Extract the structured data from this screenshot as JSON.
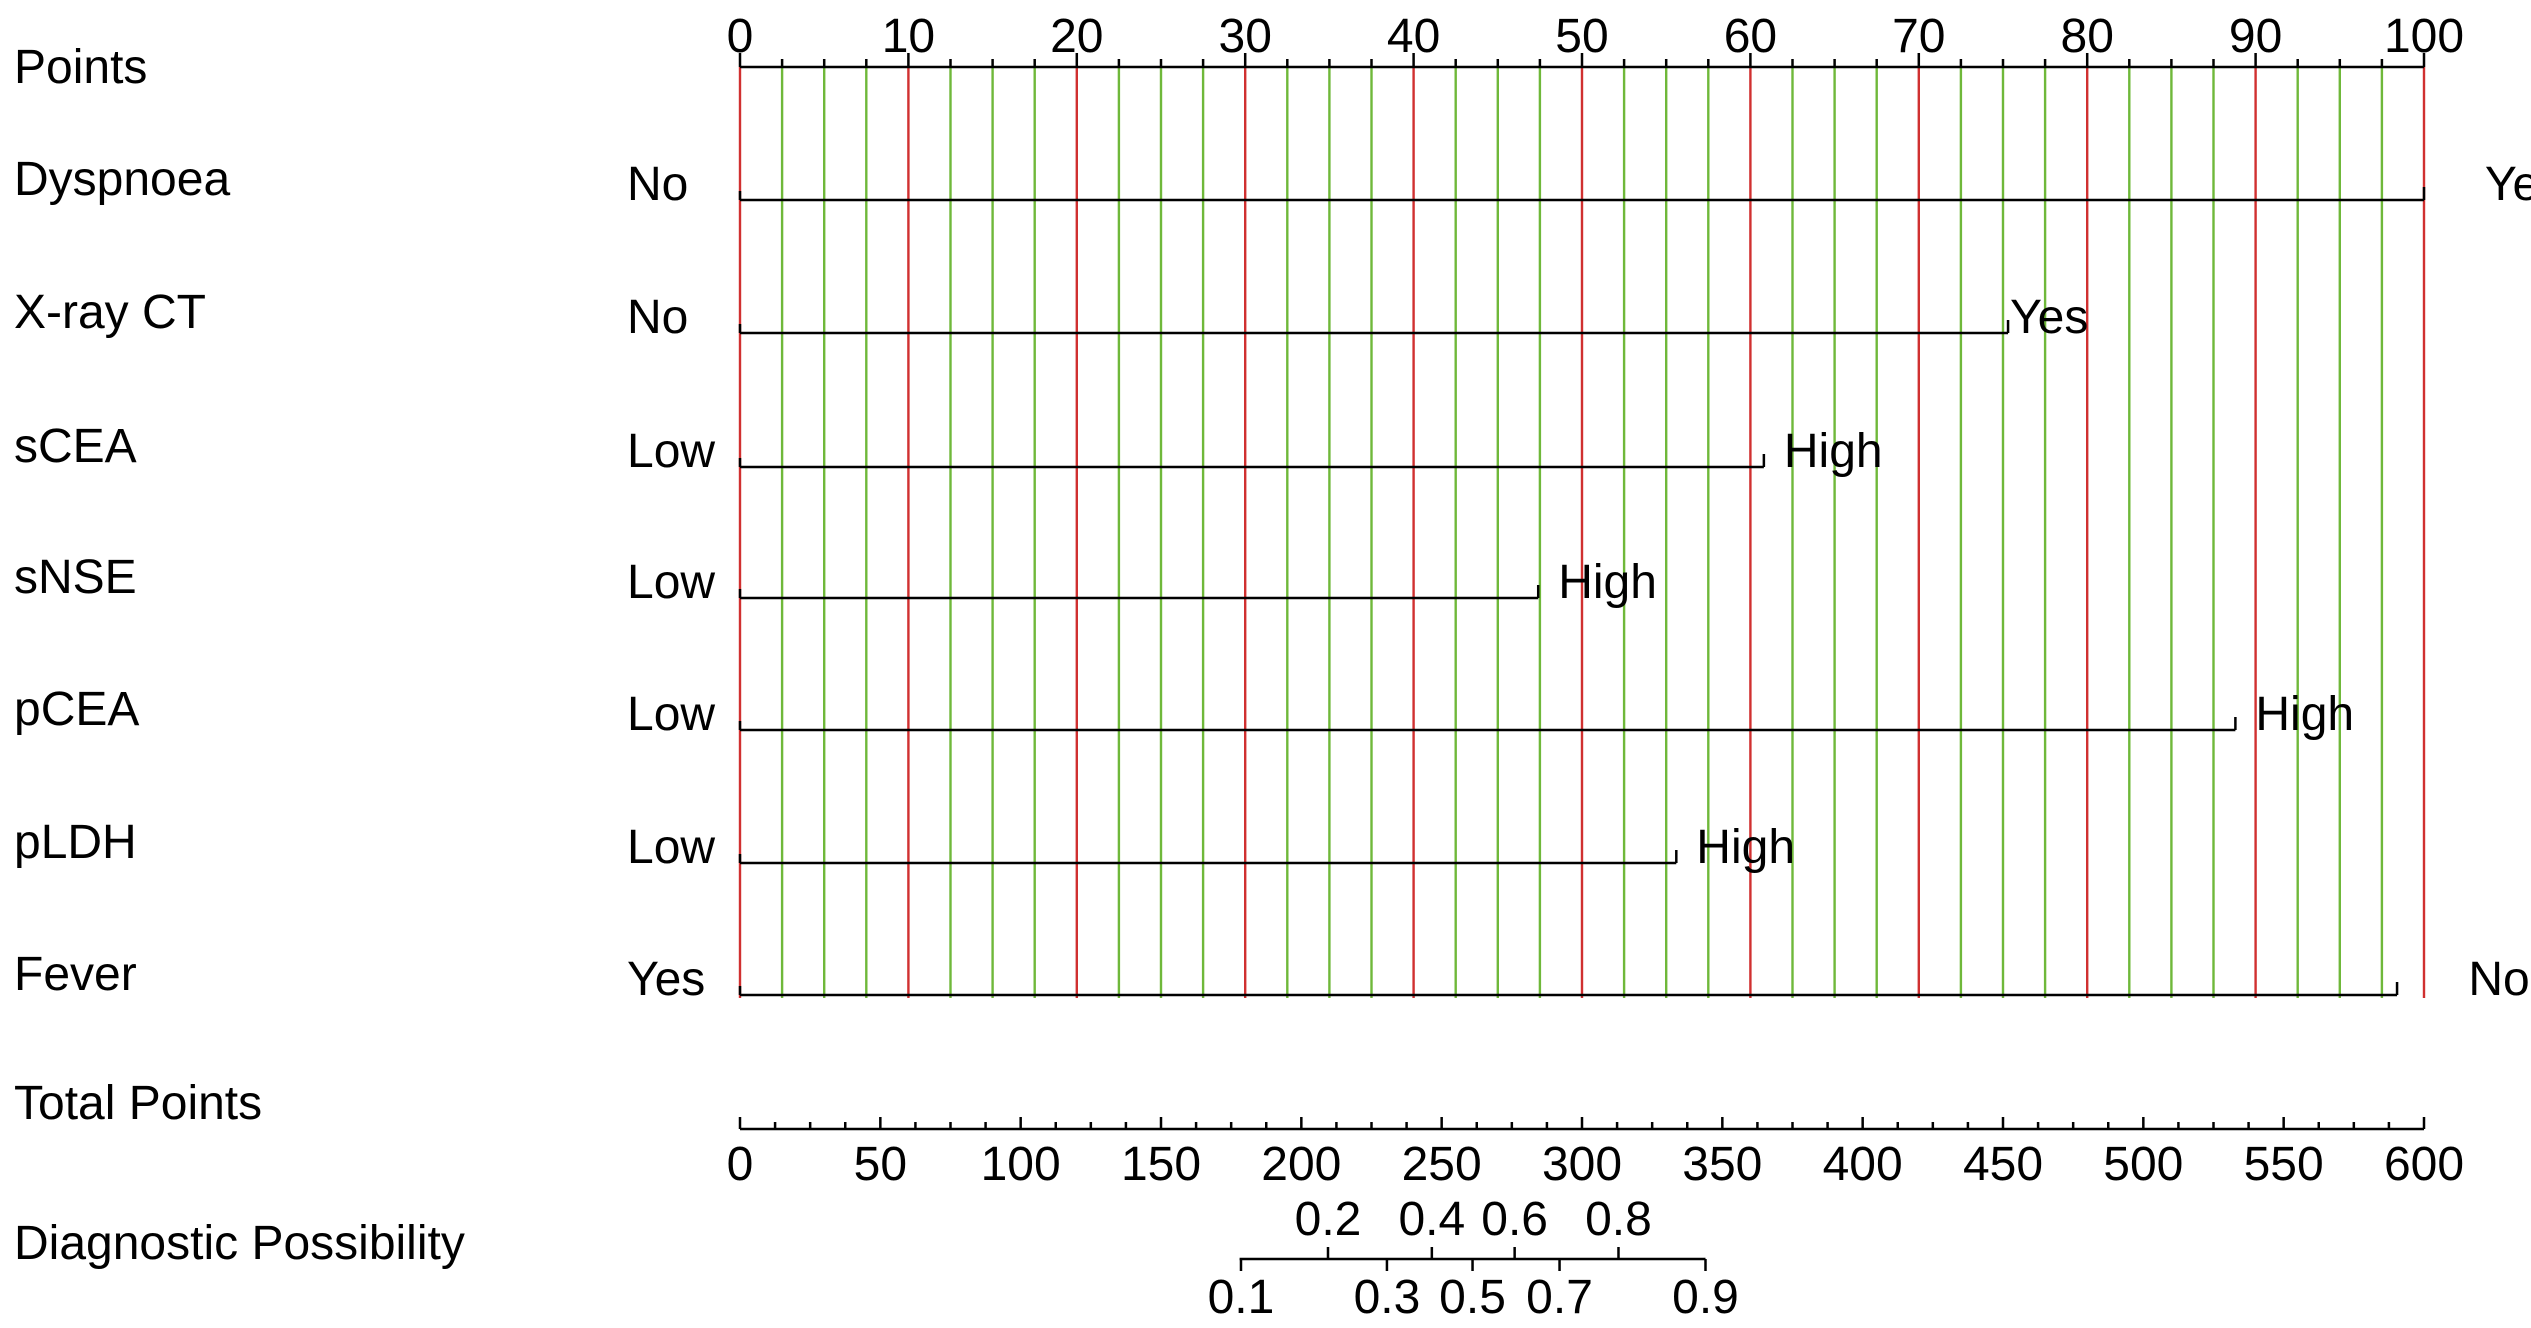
{
  "chart_data": {
    "type": "nomogram",
    "colors": {
      "grid_major": "#d03030",
      "grid_minor": "#6fb83a",
      "axis": "#000000"
    },
    "points_axis": {
      "label": "Points",
      "range": [
        0,
        100
      ],
      "ticks": [
        "0",
        "10",
        "20",
        "30",
        "40",
        "50",
        "60",
        "70",
        "80",
        "90",
        "100"
      ]
    },
    "variables": [
      {
        "name": "Dyspnoea",
        "start_label": "No",
        "end_label": "Yes",
        "start_points": 0,
        "end_points": 100.0,
        "marker_points": 100.0
      },
      {
        "name": "X-ray CT",
        "start_label": "No",
        "end_label": "Yes",
        "start_points": 0,
        "end_points": 75.3,
        "marker_points": 75.3
      },
      {
        "name": "sCEA",
        "start_label": "Low",
        "end_label": "High",
        "start_points": 0,
        "end_points": 60.8,
        "marker_points": 60.8
      },
      {
        "name": "sNSE",
        "start_label": "Low",
        "end_label": "High",
        "start_points": 0,
        "end_points": 47.4,
        "marker_points": 47.4
      },
      {
        "name": "pCEA",
        "start_label": "Low",
        "end_label": "High",
        "start_points": 0,
        "end_points": 88.8,
        "marker_points": 88.8
      },
      {
        "name": "pLDH",
        "start_label": "Low",
        "end_label": "High",
        "start_points": 0,
        "end_points": 55.6,
        "marker_points": 55.6
      },
      {
        "name": "Fever",
        "start_label": "Yes",
        "end_label": "No",
        "start_points": 0,
        "end_points": 98.4,
        "marker_points": 98.4
      }
    ],
    "total_points_axis": {
      "label": "Total Points",
      "range": [
        0,
        600
      ],
      "ticks": [
        "0",
        "50",
        "100",
        "150",
        "200",
        "250",
        "300",
        "350",
        "400",
        "450",
        "500",
        "550",
        "600"
      ]
    },
    "diagnostic_axis": {
      "label": "Diagnostic Possibility",
      "range_total_points": [
        178,
        344
      ],
      "ticks": [
        {
          "label": "0.1",
          "total_points": 178.5,
          "side": "below"
        },
        {
          "label": "0.2",
          "total_points": 209.5,
          "side": "above"
        },
        {
          "label": "0.3",
          "total_points": 230.5,
          "side": "below"
        },
        {
          "label": "0.4",
          "total_points": 246.5,
          "side": "above"
        },
        {
          "label": "0.5",
          "total_points": 261.0,
          "side": "below"
        },
        {
          "label": "0.6",
          "total_points": 276.0,
          "side": "above"
        },
        {
          "label": "0.7",
          "total_points": 292.0,
          "side": "below"
        },
        {
          "label": "0.8",
          "total_points": 313.0,
          "side": "above"
        },
        {
          "label": "0.9",
          "total_points": 344.0,
          "side": "below"
        }
      ]
    }
  }
}
